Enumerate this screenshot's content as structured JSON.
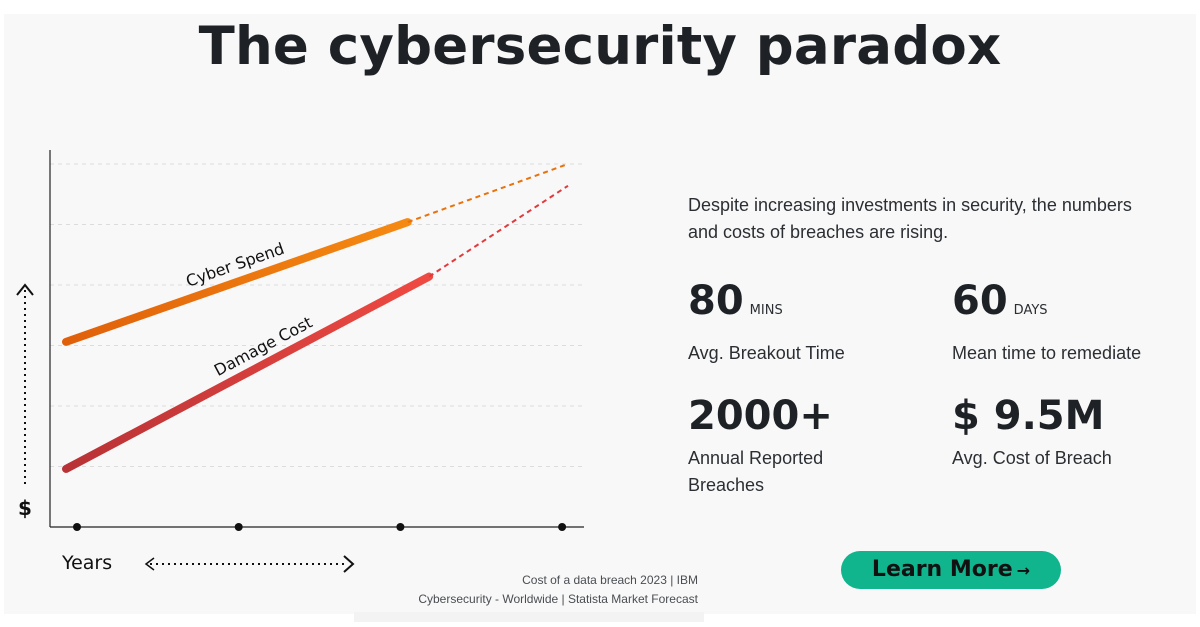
{
  "title": "The cybersecurity paradox",
  "description": "Despite increasing investments in security, the numbers and costs of breaches are rising.",
  "stats": [
    {
      "value": "80",
      "unit": "MINS",
      "label": "Avg. Breakout Time"
    },
    {
      "value": "60",
      "unit": "DAYS",
      "label": "Mean time to remediate"
    },
    {
      "value": "2000+",
      "unit": "",
      "label": "Annual Reported Breaches"
    },
    {
      "value": "$ 9.5M",
      "unit": "",
      "label": "Avg. Cost of Breach"
    }
  ],
  "cta": {
    "label": "Learn More",
    "arrow": "→"
  },
  "sources": [
    "Cost of a data breach 2023 | IBM",
    "Cybersecurity - Worldwide | Statista Market Forecast"
  ],
  "colors": {
    "cyber_spend": "#e8720c",
    "damage_cost": "#e03a3e",
    "button": "#10b58e",
    "title": "#1e2226"
  },
  "chart_data": {
    "type": "line",
    "title": "",
    "xlabel": "Years",
    "ylabel": "$",
    "x_ticks": 4,
    "grid": "horizontal dashed",
    "series": [
      {
        "name": "Cyber Spend",
        "solid": [
          [
            0.03,
            0.51
          ],
          [
            0.67,
            0.84
          ]
        ],
        "projected": [
          [
            0.67,
            0.84
          ],
          [
            0.97,
            1.0
          ]
        ]
      },
      {
        "name": "Damage Cost",
        "solid": [
          [
            0.03,
            0.16
          ],
          [
            0.71,
            0.69
          ]
        ],
        "projected": [
          [
            0.71,
            0.69
          ],
          [
            0.97,
            0.94
          ]
        ]
      }
    ]
  }
}
